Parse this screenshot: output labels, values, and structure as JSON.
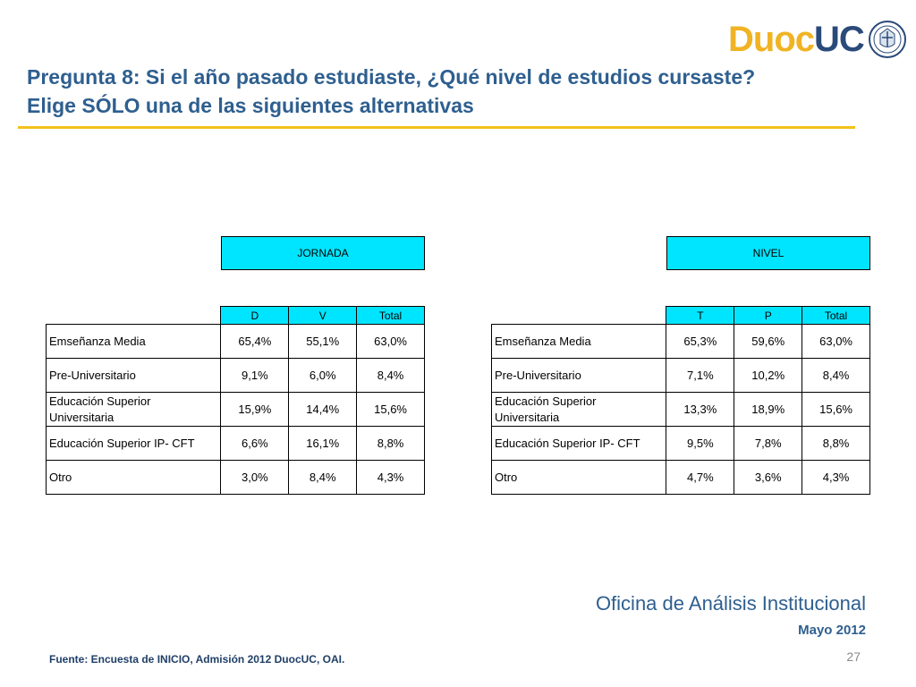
{
  "title": {
    "line1": "Pregunta 8: Si el año pasado estudiaste, ¿Qué nivel de estudios cursaste?",
    "line2": "Elige SÓLO una de las siguientes alternativas"
  },
  "logo": {
    "duoc": "Duoc",
    "uc": "UC"
  },
  "colors": {
    "accent": "#00e5ff",
    "title": "#2e5f8f",
    "rule": "#f2c21b",
    "logo_yellow": "#f0b323",
    "logo_blue": "#2a4a7a"
  },
  "table_left": {
    "group_header": "JORNADA",
    "columns": [
      "D",
      "V",
      "Total"
    ],
    "rows": [
      {
        "label": "Emseñanza Media",
        "values": [
          "65,4%",
          "55,1%",
          "63,0%"
        ]
      },
      {
        "label": "Pre-Universitario",
        "values": [
          "9,1%",
          "6,0%",
          "8,4%"
        ]
      },
      {
        "label": "Educación Superior Universitaria",
        "values": [
          "15,9%",
          "14,4%",
          "15,6%"
        ]
      },
      {
        "label": "Educación Superior IP- CFT",
        "values": [
          "6,6%",
          "16,1%",
          "8,8%"
        ]
      },
      {
        "label": "Otro",
        "values": [
          "3,0%",
          "8,4%",
          "4,3%"
        ]
      }
    ]
  },
  "table_right": {
    "group_header": "NIVEL",
    "columns": [
      "T",
      "P",
      "Total"
    ],
    "rows": [
      {
        "label": "Emseñanza Media",
        "values": [
          "65,3%",
          "59,6%",
          "63,0%"
        ]
      },
      {
        "label": "Pre-Universitario",
        "values": [
          "7,1%",
          "10,2%",
          "8,4%"
        ]
      },
      {
        "label": "Educación Superior Universitaria",
        "values": [
          "13,3%",
          "18,9%",
          "15,6%"
        ]
      },
      {
        "label": "Educación Superior IP- CFT",
        "values": [
          "9,5%",
          "7,8%",
          "8,8%"
        ]
      },
      {
        "label": "Otro",
        "values": [
          "4,7%",
          "3,6%",
          "4,3%"
        ]
      }
    ]
  },
  "footer": {
    "office": "Oficina de Análisis Institucional",
    "date": "Mayo 2012",
    "page_number": "27",
    "source": "Fuente: Encuesta de INICIO, Admisión 2012 DuocUC, OAI."
  }
}
